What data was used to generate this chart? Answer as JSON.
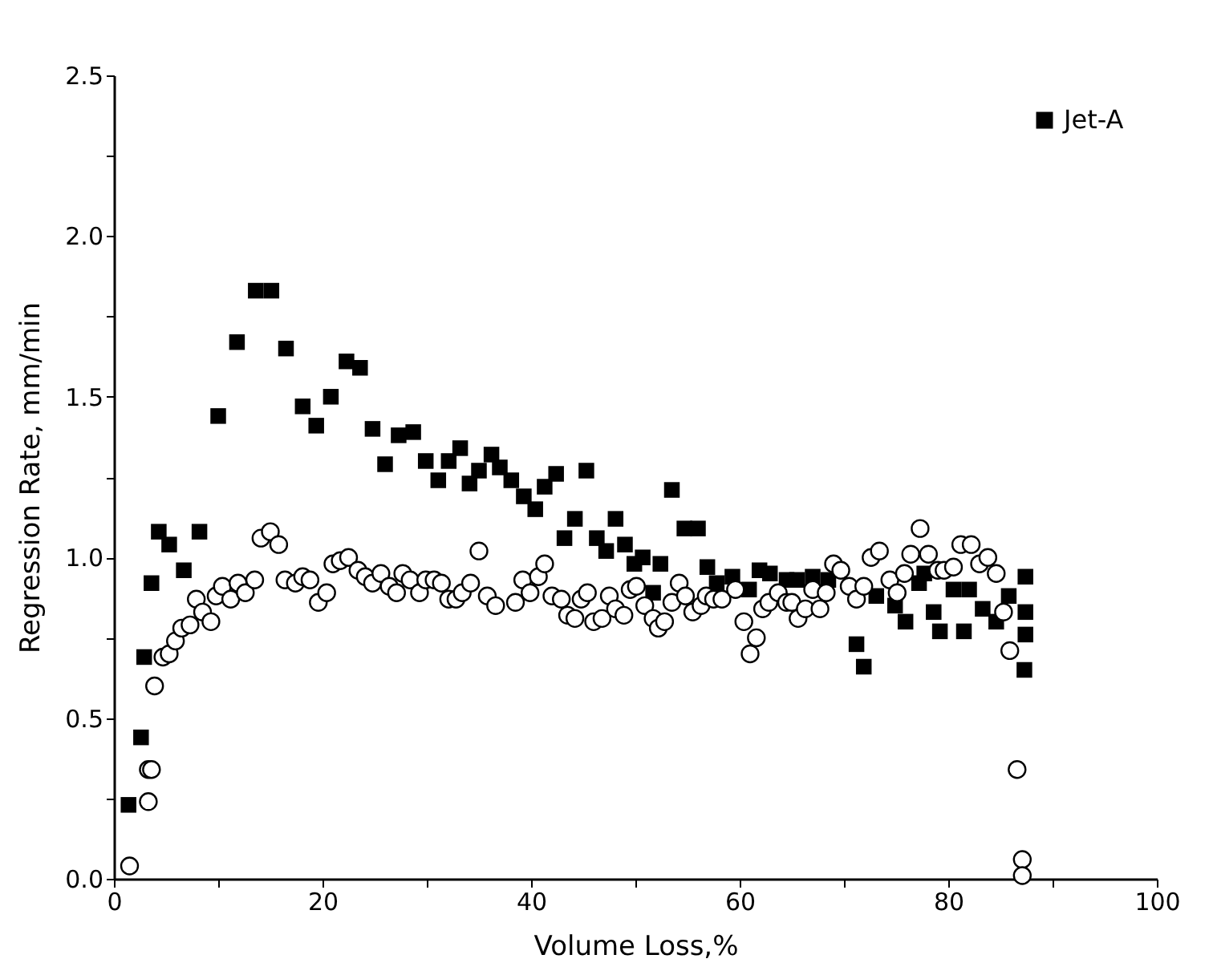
{
  "chart_data": {
    "type": "scatter",
    "xlabel": "Volume Loss,%",
    "ylabel": "Regression Rate, mm/min",
    "xlim": [
      0,
      100
    ],
    "ylim": [
      0,
      2.5
    ],
    "xticks": [
      0,
      {
        "value": 10,
        "label": null
      },
      20,
      {
        "value": 30,
        "label": null
      },
      40,
      {
        "value": 50,
        "label": null
      },
      60,
      {
        "value": 70,
        "label": null
      },
      80,
      {
        "value": 90,
        "label": null
      },
      100
    ],
    "yticks": [
      {
        "value": 0,
        "label": "0.0"
      },
      {
        "value": 0.25,
        "label": null
      },
      {
        "value": 0.5,
        "label": "0.5"
      },
      {
        "value": 0.75,
        "label": null
      },
      {
        "value": 1.0,
        "label": "1.0"
      },
      {
        "value": 1.25,
        "label": null
      },
      {
        "value": 1.5,
        "label": "1.5"
      },
      {
        "value": 1.75,
        "label": null
      },
      {
        "value": 2.0,
        "label": "2.0"
      },
      {
        "value": 2.25,
        "label": null
      },
      {
        "value": 2.5,
        "label": "2.5"
      }
    ],
    "grid": false,
    "legend": "top right",
    "series": [
      {
        "name": "Jet-A",
        "color": "#000000",
        "marker": "square",
        "x": [
          1.4,
          2.6,
          2.9,
          3.6,
          4.3,
          5.3,
          6.7,
          8.2,
          10.0,
          11.8,
          13.6,
          15.1,
          16.5,
          18.1,
          19.4,
          20.8,
          22.3,
          23.6,
          24.8,
          26.0,
          27.3,
          28.7,
          29.9,
          31.1,
          32.1,
          33.2,
          34.1,
          35.0,
          36.2,
          37.0,
          38.1,
          39.3,
          40.4,
          41.3,
          42.4,
          43.2,
          44.2,
          45.3,
          46.3,
          47.2,
          48.1,
          49.0,
          49.9,
          50.7,
          51.7,
          52.4,
          53.5,
          54.7,
          56.0,
          56.9,
          57.8,
          59.3,
          60.9,
          61.9,
          62.9,
          64.5,
          65.5,
          67.0,
          68.5,
          71.2,
          71.9,
          73.1,
          74.9,
          75.9,
          77.2,
          77.7,
          78.6,
          79.2,
          80.5,
          81.5,
          82.0,
          83.3,
          84.6,
          85.8,
          87.4,
          87.4,
          87.4,
          87.3
        ],
        "values": [
          0.23,
          0.44,
          0.69,
          0.92,
          1.08,
          1.04,
          0.96,
          1.08,
          1.44,
          1.67,
          1.83,
          1.83,
          1.65,
          1.47,
          1.41,
          1.5,
          1.61,
          1.59,
          1.4,
          1.29,
          1.38,
          1.39,
          1.3,
          1.24,
          1.3,
          1.34,
          1.23,
          1.27,
          1.32,
          1.28,
          1.24,
          1.19,
          1.15,
          1.22,
          1.26,
          1.06,
          1.12,
          1.27,
          1.06,
          1.02,
          1.12,
          1.04,
          0.98,
          1.0,
          0.89,
          0.98,
          1.21,
          1.09,
          1.09,
          0.97,
          0.92,
          0.94,
          0.9,
          0.96,
          0.95,
          0.93,
          0.93,
          0.94,
          0.93,
          0.73,
          0.66,
          0.88,
          0.85,
          0.8,
          0.92,
          0.95,
          0.83,
          0.77,
          0.9,
          0.77,
          0.9,
          0.84,
          0.8,
          0.88,
          0.94,
          0.83,
          0.76,
          0.65
        ]
      },
      {
        "color": "#000000",
        "marker": "circle",
        "x": [
          1.5,
          3.3,
          3.3,
          3.6,
          3.9,
          4.7,
          5.3,
          5.9,
          6.5,
          7.3,
          7.9,
          8.5,
          9.3,
          9.8,
          10.4,
          11.2,
          11.9,
          12.6,
          13.5,
          14.1,
          15.0,
          15.8,
          16.4,
          17.4,
          18.1,
          18.8,
          19.6,
          20.4,
          21.0,
          21.7,
          22.5,
          23.4,
          24.1,
          24.8,
          25.6,
          26.4,
          27.1,
          27.7,
          28.4,
          29.3,
          29.9,
          30.7,
          31.4,
          32.1,
          32.8,
          33.4,
          34.2,
          35.0,
          35.8,
          36.6,
          38.5,
          39.2,
          39.9,
          40.7,
          41.3,
          42.0,
          42.9,
          43.5,
          44.2,
          44.8,
          45.4,
          46.0,
          46.8,
          47.5,
          48.1,
          48.9,
          49.5,
          50.1,
          50.9,
          51.7,
          52.2,
          52.8,
          53.5,
          54.2,
          54.8,
          55.5,
          56.3,
          56.8,
          57.5,
          58.3,
          59.6,
          60.4,
          61.0,
          61.6,
          62.2,
          62.8,
          63.7,
          64.5,
          65.0,
          65.6,
          66.3,
          67.0,
          67.7,
          68.3,
          69.0,
          69.7,
          70.5,
          71.2,
          71.9,
          72.6,
          73.4,
          74.4,
          75.1,
          75.8,
          76.4,
          77.3,
          78.1,
          79.0,
          79.6,
          80.5,
          81.2,
          82.2,
          83.0,
          83.8,
          84.6,
          85.3,
          85.9,
          86.6,
          87.1,
          87.1
        ],
        "values": [
          0.04,
          0.24,
          0.34,
          0.34,
          0.6,
          0.69,
          0.7,
          0.74,
          0.78,
          0.79,
          0.87,
          0.83,
          0.8,
          0.88,
          0.91,
          0.87,
          0.92,
          0.89,
          0.93,
          1.06,
          1.08,
          1.04,
          0.93,
          0.92,
          0.94,
          0.93,
          0.86,
          0.89,
          0.98,
          0.99,
          1.0,
          0.96,
          0.94,
          0.92,
          0.95,
          0.91,
          0.89,
          0.95,
          0.93,
          0.89,
          0.93,
          0.93,
          0.92,
          0.87,
          0.87,
          0.89,
          0.92,
          1.02,
          0.88,
          0.85,
          0.86,
          0.93,
          0.89,
          0.94,
          0.98,
          0.88,
          0.87,
          0.82,
          0.81,
          0.87,
          0.89,
          0.8,
          0.81,
          0.88,
          0.84,
          0.82,
          0.9,
          0.91,
          0.85,
          0.81,
          0.78,
          0.8,
          0.86,
          0.92,
          0.88,
          0.83,
          0.85,
          0.88,
          0.87,
          0.87,
          0.9,
          0.8,
          0.7,
          0.75,
          0.84,
          0.86,
          0.89,
          0.86,
          0.86,
          0.81,
          0.84,
          0.9,
          0.84,
          0.89,
          0.98,
          0.96,
          0.91,
          0.87,
          0.91,
          1.0,
          1.02,
          0.93,
          0.89,
          0.95,
          1.01,
          1.09,
          1.01,
          0.96,
          0.96,
          0.97,
          1.04,
          1.04,
          0.98,
          1.0,
          0.95,
          0.83,
          0.71,
          0.34,
          0.06,
          0.01
        ]
      }
    ]
  }
}
